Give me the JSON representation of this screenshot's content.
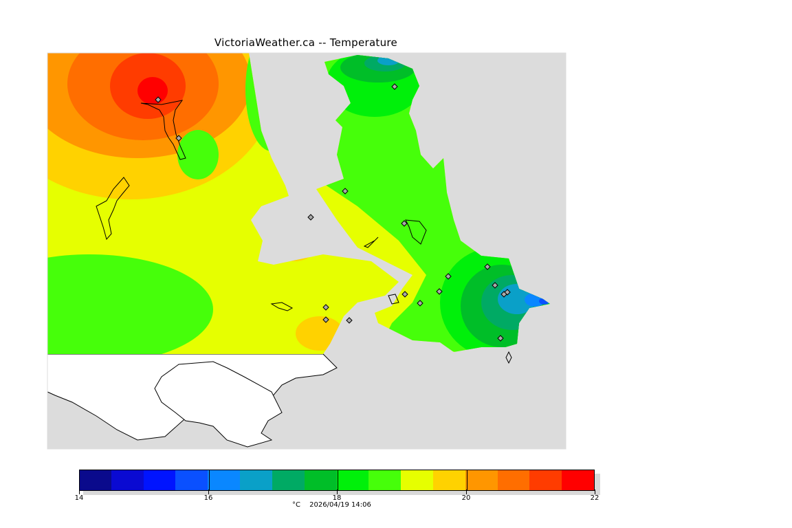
{
  "title": "VictoriaWeather.ca -- Temperature",
  "colorbar": {
    "colors": [
      "#0a0a8c",
      "#0a0ad2",
      "#0014ff",
      "#0a50ff",
      "#0a87ff",
      "#0aa0c8",
      "#00aa64",
      "#00be28",
      "#00f00a",
      "#46ff0a",
      "#e6ff00",
      "#ffd200",
      "#ff9600",
      "#ff6e00",
      "#ff3c00",
      "#ff0000"
    ],
    "ticks": [
      {
        "value": 14,
        "label": "14"
      },
      {
        "value": 16,
        "label": "16"
      },
      {
        "value": 18,
        "label": "18"
      },
      {
        "value": 20,
        "label": "20"
      },
      {
        "value": 22,
        "label": "22"
      }
    ],
    "min": 14,
    "max": 22,
    "unit": "°C",
    "timestamp": "2026/04/19 14:06"
  },
  "map_colors": {
    "land_no_data": "#dcdcdc",
    "outside": "#ffffff"
  }
}
